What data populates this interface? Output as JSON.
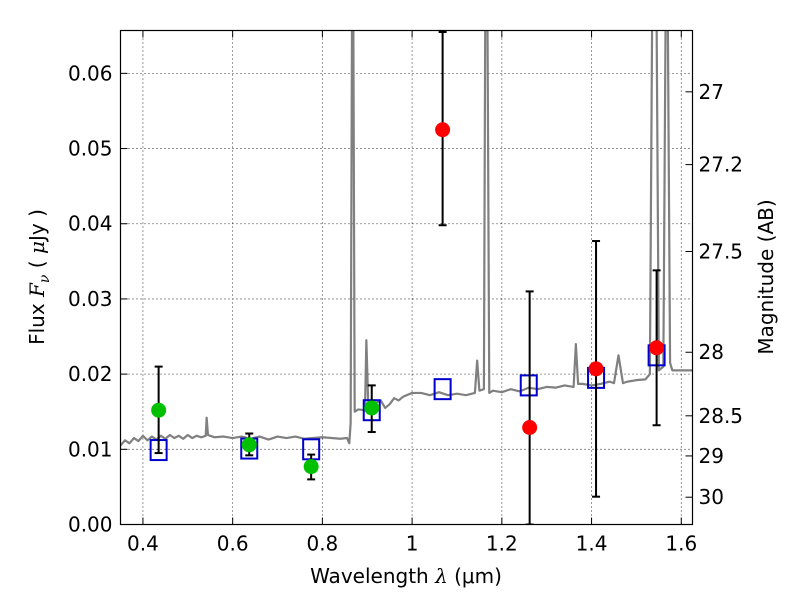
{
  "chart_data": {
    "type": "scatter",
    "xlabel": "Wavelength  λ (μm)",
    "ylabel": "Flux  F_ν  ( μJy )",
    "ylabel_parts": {
      "prefix": "Flux",
      "symbol": "F",
      "subscript": "ν",
      "unit_open": "( ",
      "unit_mu": "μ",
      "unit_rest": "Jy )"
    },
    "xlabel_parts": {
      "prefix": "Wavelength",
      "symbol": "λ",
      "unit": "(μm)"
    },
    "y2label": "Magnitude (AB)",
    "xlim": [
      0.35,
      1.625
    ],
    "ylim": [
      0.0,
      0.0657
    ],
    "grid": true,
    "xticks": [
      {
        "value": 0.4,
        "label": "0.4"
      },
      {
        "value": 0.6,
        "label": "0.6"
      },
      {
        "value": 0.8,
        "label": "0.8"
      },
      {
        "value": 1.0,
        "label": "1"
      },
      {
        "value": 1.2,
        "label": "1.2"
      },
      {
        "value": 1.4,
        "label": "1.4"
      },
      {
        "value": 1.6,
        "label": "1.6"
      }
    ],
    "yticks": [
      {
        "value": 0.0,
        "label": "0.00"
      },
      {
        "value": 0.01,
        "label": "0.01"
      },
      {
        "value": 0.02,
        "label": "0.02"
      },
      {
        "value": 0.03,
        "label": "0.03"
      },
      {
        "value": 0.04,
        "label": "0.04"
      },
      {
        "value": 0.05,
        "label": "0.05"
      },
      {
        "value": 0.06,
        "label": "0.06"
      }
    ],
    "y2ticks": [
      {
        "value": 27.0,
        "label": "27"
      },
      {
        "value": 27.2,
        "label": "27.2"
      },
      {
        "value": 27.5,
        "label": "27.5"
      },
      {
        "value": 28.0,
        "label": "28"
      },
      {
        "value": 28.5,
        "label": "28.5"
      },
      {
        "value": 29.0,
        "label": "29"
      },
      {
        "value": 30.0,
        "label": "30"
      }
    ],
    "series": [
      {
        "name": "model spectrum",
        "kind": "line",
        "color": "#808080",
        "points": [
          [
            0.35,
            0.0105
          ],
          [
            0.36,
            0.0112
          ],
          [
            0.37,
            0.0108
          ],
          [
            0.38,
            0.0115
          ],
          [
            0.39,
            0.0111
          ],
          [
            0.4,
            0.0118
          ],
          [
            0.41,
            0.0112
          ],
          [
            0.42,
            0.0117
          ],
          [
            0.43,
            0.0113
          ],
          [
            0.44,
            0.0118
          ],
          [
            0.45,
            0.0114
          ],
          [
            0.46,
            0.0119
          ],
          [
            0.47,
            0.0115
          ],
          [
            0.48,
            0.0118
          ],
          [
            0.49,
            0.0114
          ],
          [
            0.5,
            0.0119
          ],
          [
            0.51,
            0.0115
          ],
          [
            0.52,
            0.0118
          ],
          [
            0.53,
            0.0116
          ],
          [
            0.54,
            0.0118
          ],
          [
            0.542,
            0.0142
          ],
          [
            0.545,
            0.0119
          ],
          [
            0.56,
            0.0116
          ],
          [
            0.58,
            0.0117
          ],
          [
            0.6,
            0.0115
          ],
          [
            0.62,
            0.0117
          ],
          [
            0.64,
            0.0114
          ],
          [
            0.66,
            0.0117
          ],
          [
            0.68,
            0.0113
          ],
          [
            0.7,
            0.0117
          ],
          [
            0.72,
            0.0115
          ],
          [
            0.74,
            0.0117
          ],
          [
            0.76,
            0.0114
          ],
          [
            0.78,
            0.0115
          ],
          [
            0.8,
            0.0116
          ],
          [
            0.82,
            0.0115
          ],
          [
            0.84,
            0.0114
          ],
          [
            0.855,
            0.0115
          ],
          [
            0.86,
            0.0108
          ],
          [
            0.863,
            0.0135
          ],
          [
            0.866,
            0.067
          ],
          [
            0.869,
            0.067
          ],
          [
            0.872,
            0.015
          ],
          [
            0.88,
            0.0153
          ],
          [
            0.895,
            0.0152
          ],
          [
            0.898,
            0.0245
          ],
          [
            0.902,
            0.0165
          ],
          [
            0.91,
            0.0158
          ],
          [
            0.92,
            0.0162
          ],
          [
            0.93,
            0.0165
          ],
          [
            0.94,
            0.0155
          ],
          [
            0.95,
            0.016
          ],
          [
            0.96,
            0.0168
          ],
          [
            0.97,
            0.0165
          ],
          [
            0.98,
            0.017
          ],
          [
            1.0,
            0.0175
          ],
          [
            1.02,
            0.0175
          ],
          [
            1.04,
            0.0172
          ],
          [
            1.06,
            0.0176
          ],
          [
            1.08,
            0.0172
          ],
          [
            1.1,
            0.0174
          ],
          [
            1.12,
            0.0172
          ],
          [
            1.14,
            0.0175
          ],
          [
            1.145,
            0.0218
          ],
          [
            1.15,
            0.0178
          ],
          [
            1.16,
            0.018
          ],
          [
            1.163,
            0.067
          ],
          [
            1.168,
            0.067
          ],
          [
            1.172,
            0.0175
          ],
          [
            1.18,
            0.0178
          ],
          [
            1.2,
            0.0176
          ],
          [
            1.22,
            0.018
          ],
          [
            1.24,
            0.0177
          ],
          [
            1.26,
            0.0182
          ],
          [
            1.28,
            0.018
          ],
          [
            1.3,
            0.0183
          ],
          [
            1.32,
            0.0182
          ],
          [
            1.34,
            0.0185
          ],
          [
            1.36,
            0.0183
          ],
          [
            1.365,
            0.024
          ],
          [
            1.37,
            0.0187
          ],
          [
            1.38,
            0.0187
          ],
          [
            1.4,
            0.0185
          ],
          [
            1.42,
            0.0187
          ],
          [
            1.44,
            0.019
          ],
          [
            1.45,
            0.0188
          ],
          [
            1.46,
            0.0225
          ],
          [
            1.47,
            0.0188
          ],
          [
            1.48,
            0.019
          ],
          [
            1.5,
            0.0192
          ],
          [
            1.52,
            0.0193
          ],
          [
            1.53,
            0.02
          ],
          [
            1.535,
            0.067
          ],
          [
            1.545,
            0.067
          ],
          [
            1.55,
            0.0205
          ],
          [
            1.56,
            0.021
          ],
          [
            1.565,
            0.067
          ],
          [
            1.57,
            0.067
          ],
          [
            1.575,
            0.0215
          ],
          [
            1.58,
            0.0205
          ],
          [
            1.6,
            0.0205
          ],
          [
            1.625,
            0.0205
          ]
        ]
      },
      {
        "name": "model photometry",
        "kind": "open-square",
        "color": "#0000cc",
        "points": [
          [
            0.435,
            0.0099
          ],
          [
            0.637,
            0.0101
          ],
          [
            0.775,
            0.01
          ],
          [
            0.91,
            0.0152
          ],
          [
            1.068,
            0.018
          ],
          [
            1.26,
            0.0185
          ],
          [
            1.41,
            0.0195
          ],
          [
            1.545,
            0.0225
          ]
        ]
      },
      {
        "name": "detections",
        "kind": "filled-circle",
        "color": "#00c000",
        "points": [
          {
            "x": 0.435,
            "y": 0.0152,
            "ylo": 0.0095,
            "yhi": 0.021
          },
          {
            "x": 0.637,
            "y": 0.0106,
            "ylo": 0.0092,
            "yhi": 0.0121
          },
          {
            "x": 0.775,
            "y": 0.0077,
            "ylo": 0.006,
            "yhi": 0.0093
          },
          {
            "x": 0.91,
            "y": 0.0155,
            "ylo": 0.0123,
            "yhi": 0.0185
          }
        ]
      },
      {
        "name": "near-IR measurements",
        "kind": "filled-circle",
        "color": "#ff0000",
        "points": [
          {
            "x": 1.068,
            "y": 0.0525,
            "ylo": 0.0398,
            "yhi": 0.0655
          },
          {
            "x": 1.262,
            "y": 0.0129,
            "ylo": 0.0,
            "yhi": 0.031
          },
          {
            "x": 1.41,
            "y": 0.0207,
            "ylo": 0.0037,
            "yhi": 0.0377
          },
          {
            "x": 1.545,
            "y": 0.0235,
            "ylo": 0.0132,
            "yhi": 0.0338
          }
        ]
      }
    ]
  }
}
